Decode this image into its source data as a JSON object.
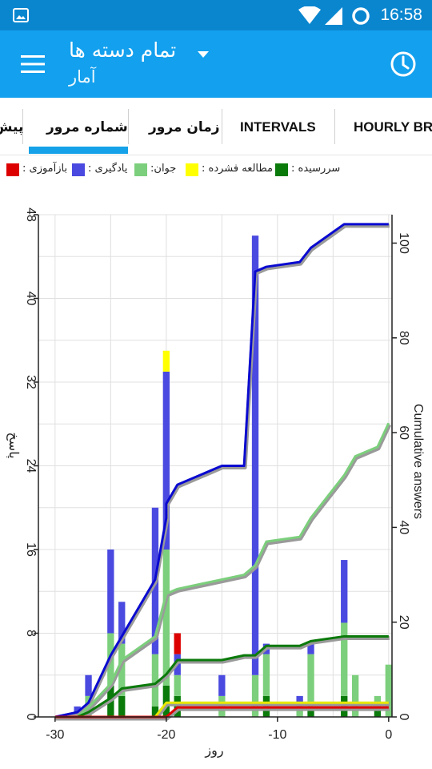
{
  "status_bar": {
    "time": "16:58"
  },
  "app_bar": {
    "title": "تمام دسته ها",
    "subtitle": "آمار"
  },
  "tabs": [
    {
      "label": "پیش"
    },
    {
      "label": "شماره مرور"
    },
    {
      "label": "زمان مرور"
    },
    {
      "label": "INTERVALS"
    },
    {
      "label": "HOURLY BREAKDOWN"
    }
  ],
  "legend": [
    {
      "label": ": بازآموزی",
      "color": "#dd0000"
    },
    {
      "label": ": یادگیری",
      "color": "#4a4ae0"
    },
    {
      "label": ":جوان",
      "color": "#7ccf7c"
    },
    {
      "label": ": مطالعه فشرده",
      "color": "#ffff00"
    },
    {
      "label": ": سررسیده",
      "color": "#0a7a0a"
    }
  ],
  "chart_data": {
    "type": "bar",
    "xlabel": "روز",
    "ylabel": "پاسخ",
    "y2label": "Cumulative answers",
    "xlim": [
      -31.5,
      0.3
    ],
    "ylim": [
      0,
      48
    ],
    "y2lim": [
      0,
      106
    ],
    "xticks": [
      -30,
      -20,
      -10,
      0
    ],
    "yticks": [
      0,
      8,
      16,
      24,
      32,
      40,
      48
    ],
    "y2ticks": [
      0,
      20,
      40,
      60,
      80,
      100
    ],
    "bars": [
      {
        "x": -28,
        "due": 0,
        "young": 0,
        "learn": 1,
        "relearn": 0,
        "cram": 0
      },
      {
        "x": -27,
        "due": 0,
        "young": 2,
        "learn": 2,
        "relearn": 0,
        "cram": 0
      },
      {
        "x": -25,
        "due": 3,
        "young": 5,
        "learn": 8,
        "relearn": 0,
        "cram": 0
      },
      {
        "x": -24,
        "due": 2,
        "young": 5,
        "learn": 4,
        "relearn": 0,
        "cram": 0
      },
      {
        "x": -21,
        "due": 1,
        "young": 5,
        "learn": 14,
        "relearn": 0,
        "cram": 0
      },
      {
        "x": -20,
        "due": 3,
        "young": 13,
        "learn": 17,
        "relearn": 0,
        "cram": 2
      },
      {
        "x": -19,
        "due": 2,
        "young": 2,
        "learn": 2,
        "relearn": 2,
        "cram": 0
      },
      {
        "x": -15,
        "due": 0,
        "young": 2,
        "learn": 2,
        "relearn": 0,
        "cram": 0
      },
      {
        "x": -12,
        "due": 0,
        "young": 4,
        "learn": 42,
        "relearn": 0,
        "cram": 0
      },
      {
        "x": -11,
        "due": 2,
        "young": 4,
        "learn": 1,
        "relearn": 0,
        "cram": 0
      },
      {
        "x": -8,
        "due": 0,
        "young": 1,
        "learn": 1,
        "relearn": 0,
        "cram": 0
      },
      {
        "x": -7,
        "due": 1,
        "young": 5,
        "learn": 1,
        "relearn": 0,
        "cram": 0
      },
      {
        "x": -4,
        "due": 2,
        "young": 7,
        "learn": 6,
        "relearn": 0,
        "cram": 0
      },
      {
        "x": -3,
        "due": 0,
        "young": 4,
        "learn": 0,
        "relearn": 0,
        "cram": 0
      },
      {
        "x": -1,
        "due": 1,
        "young": 1,
        "learn": 0,
        "relearn": 0,
        "cram": 0
      },
      {
        "x": 0,
        "due": 0,
        "young": 5,
        "learn": 0,
        "relearn": 0,
        "cram": 0
      }
    ],
    "cumulative": [
      {
        "name": "learn",
        "color": "#0a0ad0",
        "points": [
          [
            -30,
            0
          ],
          [
            -28,
            1
          ],
          [
            -27,
            3
          ],
          [
            -25,
            13
          ],
          [
            -24,
            17
          ],
          [
            -21,
            29
          ],
          [
            -20,
            42
          ],
          [
            -20,
            45
          ],
          [
            -19,
            49
          ],
          [
            -15,
            53
          ],
          [
            -13,
            53
          ],
          [
            -12,
            94
          ],
          [
            -11,
            95
          ],
          [
            -8,
            96
          ],
          [
            -7,
            99
          ],
          [
            -4,
            104
          ],
          [
            0,
            104
          ]
        ]
      },
      {
        "name": "young",
        "color": "#7ccf7c",
        "points": [
          [
            -30,
            0
          ],
          [
            -28,
            0
          ],
          [
            -27,
            2
          ],
          [
            -25,
            7
          ],
          [
            -24,
            12
          ],
          [
            -21,
            17
          ],
          [
            -20,
            26
          ],
          [
            -19,
            27
          ],
          [
            -13,
            30
          ],
          [
            -12,
            32
          ],
          [
            -11,
            37
          ],
          [
            -8,
            38
          ],
          [
            -7,
            42
          ],
          [
            -4,
            51
          ],
          [
            -3,
            55
          ],
          [
            -1,
            57
          ],
          [
            0,
            62
          ]
        ]
      },
      {
        "name": "due",
        "color": "#0a7a0a",
        "points": [
          [
            -30,
            0
          ],
          [
            -28,
            0
          ],
          [
            -27,
            1
          ],
          [
            -25,
            4
          ],
          [
            -24,
            6
          ],
          [
            -21,
            7
          ],
          [
            -20,
            9
          ],
          [
            -19,
            12
          ],
          [
            -15,
            12
          ],
          [
            -13,
            13
          ],
          [
            -12,
            13
          ],
          [
            -11,
            15
          ],
          [
            -8,
            15
          ],
          [
            -7,
            16
          ],
          [
            -4,
            17
          ],
          [
            0,
            17
          ]
        ]
      },
      {
        "name": "cram",
        "color": "#e8e800",
        "points": [
          [
            -30,
            0
          ],
          [
            -21,
            0
          ],
          [
            -20,
            3
          ],
          [
            0,
            3
          ]
        ]
      },
      {
        "name": "relearn",
        "color": "#dd0000",
        "points": [
          [
            -30,
            0
          ],
          [
            -20,
            0
          ],
          [
            -19,
            2
          ],
          [
            0,
            2
          ]
        ]
      }
    ]
  }
}
